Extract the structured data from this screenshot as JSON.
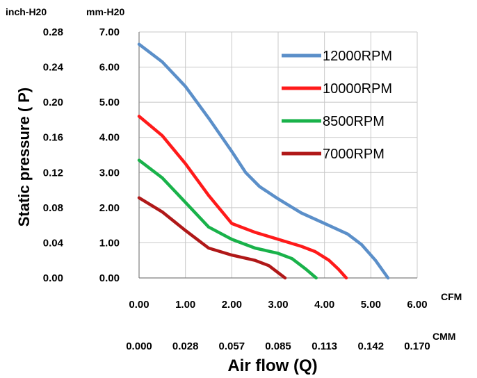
{
  "chart_data": {
    "type": "line",
    "xlabel": "Air flow (Q)",
    "ylabel": "Static  pressure ( P)",
    "y_unit_primary": "mm-H20",
    "y_unit_secondary": "inch-H20",
    "x_unit_primary": "CFM",
    "x_unit_secondary": "CMM",
    "xlim": [
      0,
      6
    ],
    "ylim": [
      0,
      7
    ],
    "x_ticks": [
      "0.00",
      "1.00",
      "2.00",
      "3.00",
      "4.00",
      "5.00",
      "6.00"
    ],
    "x_ticks_secondary": [
      "0.000",
      "0.028",
      "0.057",
      "0.085",
      "0.113",
      "0.142",
      "0.170"
    ],
    "y_ticks": [
      "0.00",
      "1.00",
      "2.00",
      "3.00",
      "4.00",
      "5.00",
      "6.00",
      "7.00"
    ],
    "y_ticks_secondary": [
      "0.00",
      "0.04",
      "0.08",
      "0.12",
      "0.16",
      "0.20",
      "0.24",
      "0.28"
    ],
    "grid": true,
    "legend_position": "top-right",
    "series": [
      {
        "name": "12000RPM",
        "color": "#5b8fc9",
        "x": [
          0,
          0.5,
          1.0,
          1.5,
          2.0,
          2.3,
          2.6,
          3.0,
          3.5,
          4.0,
          4.5,
          4.8,
          5.1,
          5.37
        ],
        "y": [
          6.65,
          6.15,
          5.45,
          4.55,
          3.6,
          3.0,
          2.6,
          2.25,
          1.85,
          1.55,
          1.25,
          0.95,
          0.5,
          0.0
        ]
      },
      {
        "name": "10000RPM",
        "color": "#ff1a1a",
        "x": [
          0,
          0.5,
          1.0,
          1.5,
          2.0,
          2.5,
          3.0,
          3.5,
          3.8,
          4.1,
          4.3,
          4.47
        ],
        "y": [
          4.6,
          4.05,
          3.25,
          2.35,
          1.55,
          1.3,
          1.1,
          0.9,
          0.75,
          0.5,
          0.25,
          0.0
        ]
      },
      {
        "name": "8500RPM",
        "color": "#19b24a",
        "x": [
          0,
          0.5,
          1.0,
          1.5,
          2.0,
          2.5,
          3.0,
          3.3,
          3.6,
          3.82
        ],
        "y": [
          3.35,
          2.85,
          2.15,
          1.45,
          1.1,
          0.85,
          0.7,
          0.55,
          0.25,
          0.0
        ]
      },
      {
        "name": "7000RPM",
        "color": "#b01818",
        "x": [
          0,
          0.5,
          1.0,
          1.5,
          2.0,
          2.5,
          2.8,
          3.0,
          3.15
        ],
        "y": [
          2.28,
          1.88,
          1.35,
          0.85,
          0.65,
          0.5,
          0.35,
          0.15,
          0.0
        ]
      }
    ]
  }
}
